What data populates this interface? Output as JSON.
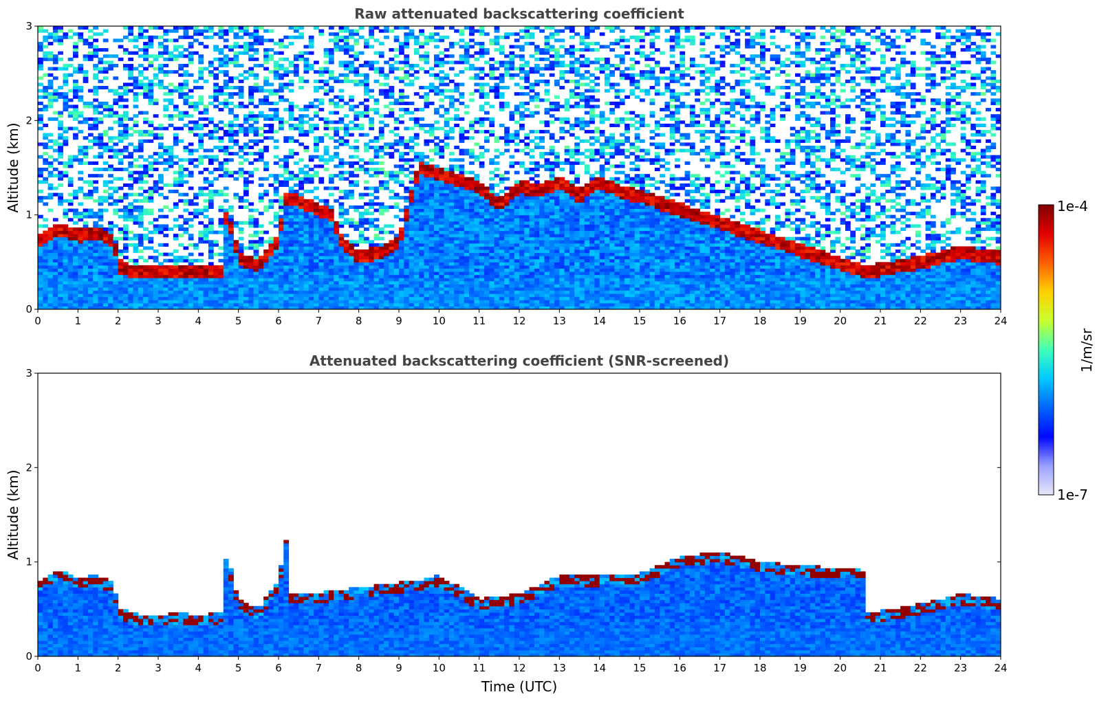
{
  "chart_data": [
    {
      "type": "heatmap",
      "title": "Raw attenuated backscattering coefficient",
      "xlabel": "",
      "ylabel": "Altitude (km)",
      "xlim": [
        0,
        24
      ],
      "ylim": [
        0,
        3
      ],
      "xticks": [
        "0",
        "1",
        "2",
        "3",
        "4",
        "5",
        "6",
        "7",
        "8",
        "9",
        "10",
        "11",
        "12",
        "13",
        "14",
        "15",
        "16",
        "17",
        "18",
        "19",
        "20",
        "21",
        "22",
        "23",
        "24"
      ],
      "yticks": [
        "0",
        "1",
        "2",
        "3"
      ],
      "screened": false,
      "layer_top_km": [
        [
          0,
          0.72
        ],
        [
          0.5,
          0.85
        ],
        [
          1.0,
          0.78
        ],
        [
          1.5,
          0.8
        ],
        [
          1.9,
          0.72
        ],
        [
          2.0,
          0.46
        ],
        [
          2.5,
          0.38
        ],
        [
          3.0,
          0.38
        ],
        [
          3.5,
          0.4
        ],
        [
          4.0,
          0.38
        ],
        [
          4.6,
          0.4
        ],
        [
          4.7,
          1.05
        ],
        [
          5.0,
          0.55
        ],
        [
          5.5,
          0.45
        ],
        [
          6.0,
          0.75
        ],
        [
          6.2,
          1.2
        ],
        [
          7.3,
          1.0
        ],
        [
          7.6,
          0.7
        ],
        [
          8.0,
          0.55
        ],
        [
          8.5,
          0.6
        ],
        [
          9.0,
          0.7
        ],
        [
          9.5,
          1.5
        ],
        [
          11.0,
          1.3
        ],
        [
          11.5,
          1.1
        ],
        [
          12.0,
          1.3
        ],
        [
          12.5,
          1.25
        ],
        [
          13.0,
          1.35
        ],
        [
          13.5,
          1.2
        ],
        [
          14.0,
          1.35
        ],
        [
          14.5,
          1.25
        ],
        [
          15.0,
          1.2
        ],
        [
          20.6,
          0.4
        ],
        [
          21.0,
          0.42
        ],
        [
          22.0,
          0.5
        ],
        [
          23.0,
          0.6
        ],
        [
          24.0,
          0.55
        ]
      ]
    },
    {
      "type": "heatmap",
      "title": "Attenuated backscattering coefficient (SNR-screened)",
      "xlabel": "Time (UTC)",
      "ylabel": "Altitude (km)",
      "xlim": [
        0,
        24
      ],
      "ylim": [
        0,
        3
      ],
      "xticks": [
        "0",
        "1",
        "2",
        "3",
        "4",
        "5",
        "6",
        "7",
        "8",
        "9",
        "10",
        "11",
        "12",
        "13",
        "14",
        "15",
        "16",
        "17",
        "18",
        "19",
        "20",
        "21",
        "22",
        "23",
        "24"
      ],
      "yticks": [
        "0",
        "1",
        "2",
        "3"
      ],
      "screened": true,
      "signal_top_km": [
        [
          6.2,
          0.62
        ],
        [
          7.0,
          0.62
        ],
        [
          9.5,
          0.75
        ],
        [
          10.0,
          0.8
        ],
        [
          11.0,
          0.55
        ],
        [
          12.0,
          0.6
        ],
        [
          13.0,
          0.8
        ],
        [
          14.0,
          0.8
        ],
        [
          15.0,
          0.82
        ],
        [
          16.0,
          1.0
        ],
        [
          17.0,
          1.05
        ],
        [
          18.0,
          0.95
        ],
        [
          19.0,
          0.9
        ],
        [
          20.0,
          0.88
        ],
        [
          20.6,
          0.85
        ]
      ]
    }
  ],
  "colorbar": {
    "label": "1/m/sr",
    "max_label": "1e-4",
    "min_label": "1e-7",
    "scale": "log",
    "colors": [
      "#e8e8f8",
      "#9aa0ff",
      "#0008ff",
      "#0064ff",
      "#00c8ff",
      "#40ffb8",
      "#c8ff30",
      "#ffd000",
      "#ff6000",
      "#e00000",
      "#800000"
    ]
  }
}
